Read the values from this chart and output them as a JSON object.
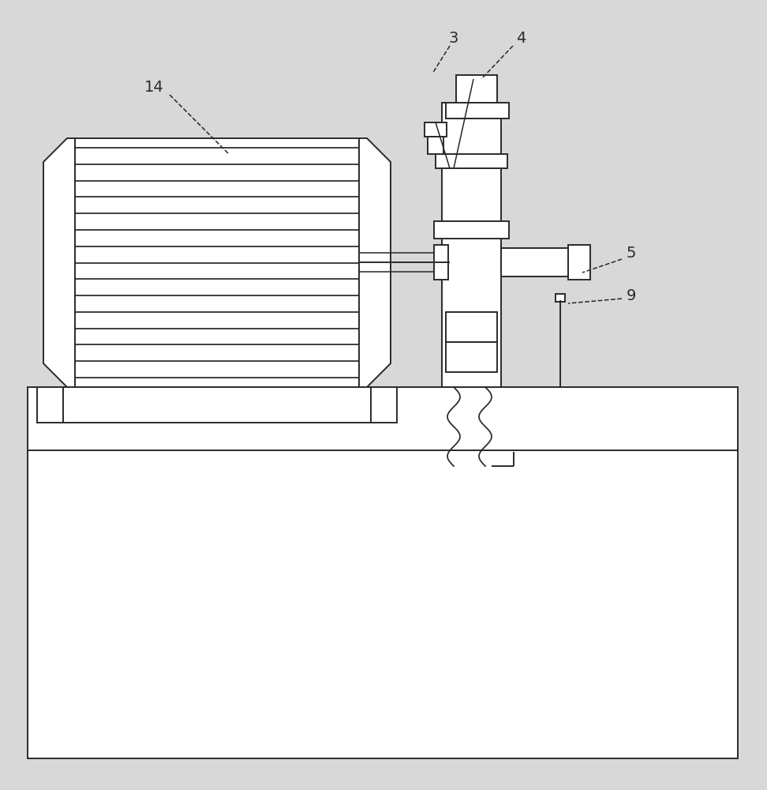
{
  "bg_color": "#d8d8d8",
  "line_color": "#2a2a2a",
  "lw": 1.4,
  "fig_w": 9.72,
  "fig_h": 10.0
}
